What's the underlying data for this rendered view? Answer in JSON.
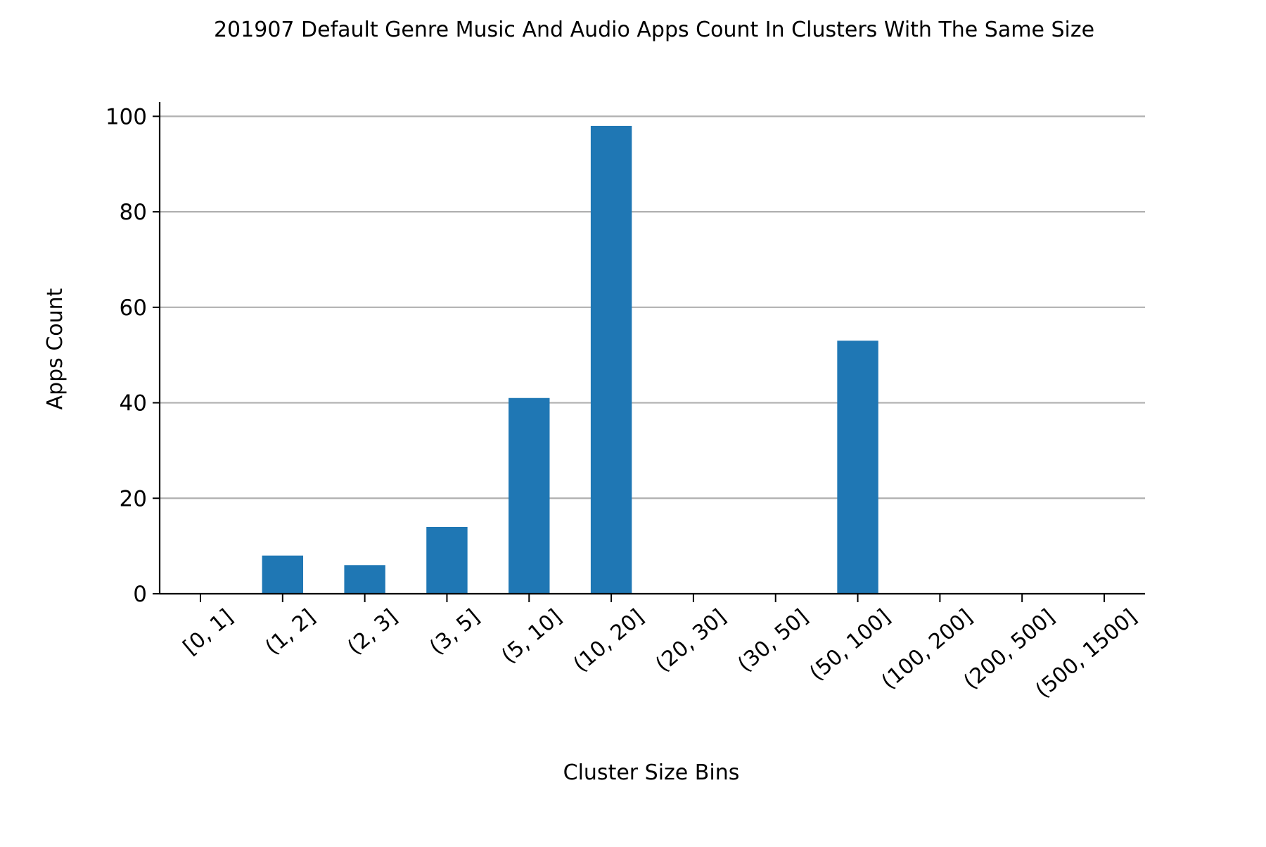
{
  "chart_data": {
    "type": "bar",
    "title": "201907 Default Genre Music And Audio Apps Count In Clusters With The Same Size",
    "xlabel": "Cluster Size Bins",
    "ylabel": "Apps Count",
    "categories": [
      "[0, 1]",
      "(1, 2]",
      "(2, 3]",
      "(3, 5]",
      "(5, 10]",
      "(10, 20]",
      "(20, 30]",
      "(30, 50]",
      "(50, 100]",
      "(100, 200]",
      "(200, 500]",
      "(500, 1500]"
    ],
    "values": [
      0,
      8,
      6,
      14,
      41,
      98,
      0,
      0,
      53,
      0,
      0,
      0
    ],
    "ylim": [
      0,
      103
    ],
    "yticks": [
      0,
      20,
      40,
      60,
      80,
      100
    ],
    "grid": "y",
    "bar_color": "#1f77b4",
    "grid_color": "#b0b0b0"
  }
}
